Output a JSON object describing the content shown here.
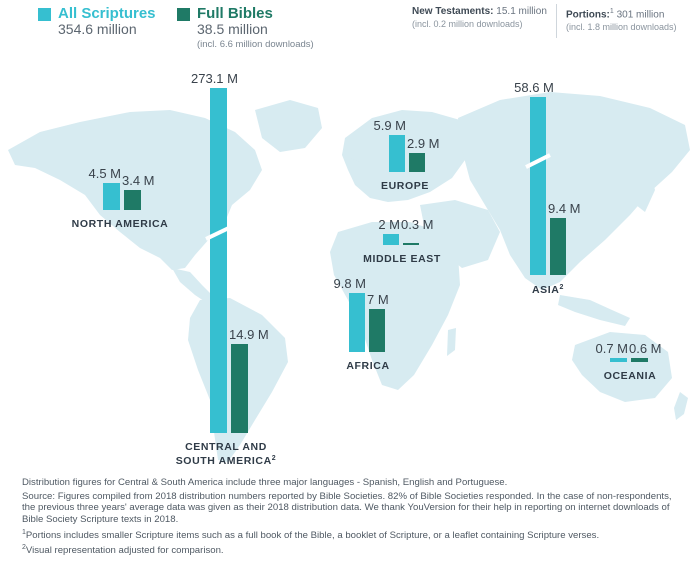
{
  "legend": {
    "all_label": "All Scriptures",
    "all_value": "354.6 million",
    "full_label": "Full Bibles",
    "full_value": "38.5 million",
    "full_sub": "(incl. 6.6 million downloads)"
  },
  "top_stats": {
    "nt_label": "New Testaments:",
    "nt_value": "15.1 million",
    "nt_sub": "(incl. 0.2 million downloads)",
    "portions_label": "Portions:",
    "portions_sup": "1",
    "portions_value": "301 million",
    "portions_sub": "(incl. 1.8 million downloads)"
  },
  "colors": {
    "all": "#36bfd0",
    "full": "#1f7a66",
    "map": "#d7ebf1",
    "label": "#2f3b47",
    "value": "#3a434c"
  },
  "chart_data": {
    "type": "bar",
    "series": [
      {
        "name": "All Scriptures",
        "color": "#36bfd0"
      },
      {
        "name": "Full Bibles",
        "color": "#1f7a66"
      }
    ],
    "regions": [
      {
        "name": "NORTH AMERICA",
        "all": 4.5,
        "full": 3.4,
        "all_label": "4.5 M",
        "full_label": "3.4 M",
        "broken": false
      },
      {
        "name": "CENTRAL AND",
        "name2": "SOUTH AMERICA",
        "name_sup": "2",
        "all": 273.1,
        "full": 14.9,
        "all_label": "273.1 M",
        "full_label": "14.9 M",
        "broken": true
      },
      {
        "name": "EUROPE",
        "all": 5.9,
        "full": 2.9,
        "all_label": "5.9 M",
        "full_label": "2.9 M",
        "broken": false
      },
      {
        "name": "MIDDLE EAST",
        "all": 2,
        "full": 0.3,
        "all_label": "2 M",
        "full_label": "0.3 M",
        "broken": false
      },
      {
        "name": "AFRICA",
        "all": 9.8,
        "full": 7,
        "all_label": "9.8 M",
        "full_label": "7 M",
        "broken": false
      },
      {
        "name": "ASIA",
        "name_sup": "2",
        "all": 58.6,
        "full": 9.4,
        "all_label": "58.6 M",
        "full_label": "9.4 M",
        "broken": true
      },
      {
        "name": "OCEANIA",
        "all": 0.7,
        "full": 0.6,
        "all_label": "0.7 M",
        "full_label": "0.6 M",
        "broken": false
      }
    ]
  },
  "notes": {
    "line1": "Distribution figures for Central & South America include three major languages - Spanish, English and Portuguese.",
    "source": "Source: Figures compiled from 2018 distribution numbers reported by Bible Societies. 82% of Bible Societies responded. In the case of non-respondents, the previous three years' average data was given as their 2018 distribution data. We thank YouVersion for their help in reporting on internet downloads of Bible Society Scripture texts in 2018.",
    "fn1_mark": "1",
    "fn1": "Portions includes smaller Scripture items such as a full book of the Bible, a booklet of Scripture, or a leaflet containing Scripture verses.",
    "fn2_mark": "2",
    "fn2": "Visual representation adjusted for comparison."
  }
}
